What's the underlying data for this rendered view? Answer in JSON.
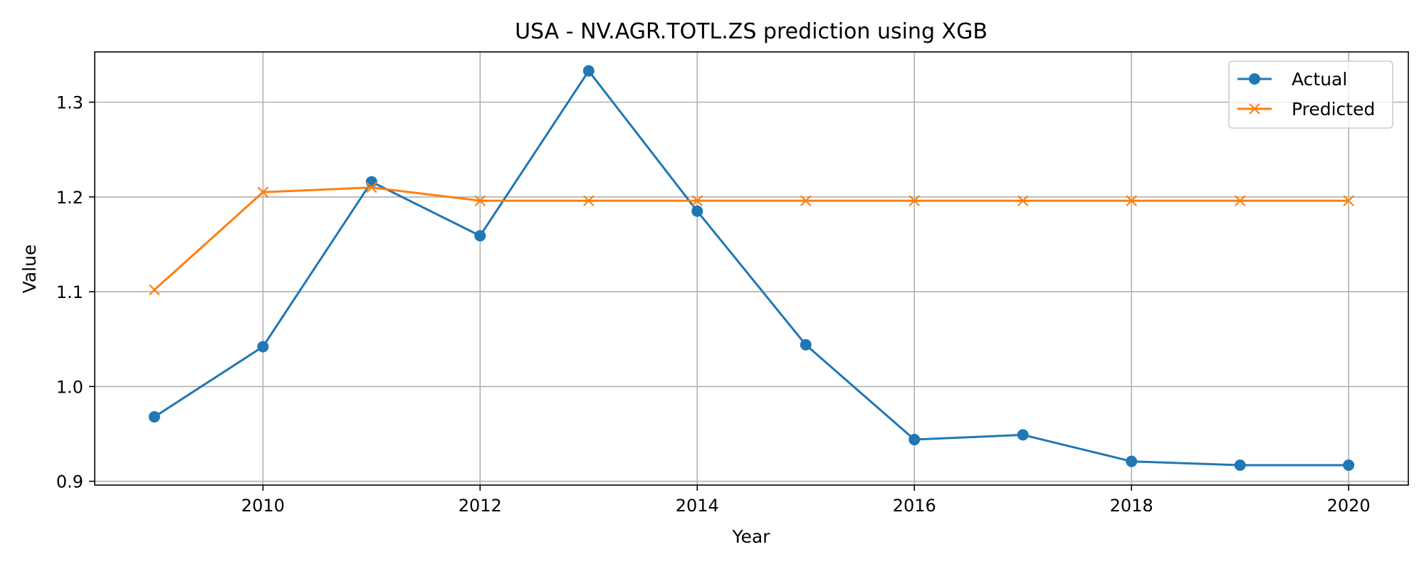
{
  "chart_data": {
    "type": "line",
    "title": "USA - NV.AGR.TOTL.ZS prediction using XGB",
    "xlabel": "Year",
    "ylabel": "Value",
    "x": [
      2009,
      2010,
      2011,
      2012,
      2013,
      2014,
      2015,
      2016,
      2017,
      2018,
      2019,
      2020
    ],
    "xlim": [
      2008.45,
      2020.55
    ],
    "ylim": [
      0.896,
      1.353
    ],
    "xticks": [
      2010,
      2012,
      2014,
      2016,
      2018,
      2020
    ],
    "yticks": [
      0.9,
      1.0,
      1.1,
      1.2,
      1.3
    ],
    "ytick_labels": [
      "0.9",
      "1.0",
      "1.1",
      "1.2",
      "1.3"
    ],
    "grid": true,
    "legend_position": "top-right",
    "series": [
      {
        "name": "Actual",
        "marker": "circle",
        "color": "#1f77b4",
        "values": [
          0.968,
          1.042,
          1.216,
          1.159,
          1.333,
          1.185,
          1.044,
          0.944,
          0.949,
          0.921,
          0.917,
          0.917
        ]
      },
      {
        "name": "Predicted",
        "marker": "x",
        "color": "#ff7f0e",
        "values": [
          1.102,
          1.205,
          1.21,
          1.196,
          1.196,
          1.196,
          1.196,
          1.196,
          1.196,
          1.196,
          1.196,
          1.196
        ]
      }
    ]
  }
}
